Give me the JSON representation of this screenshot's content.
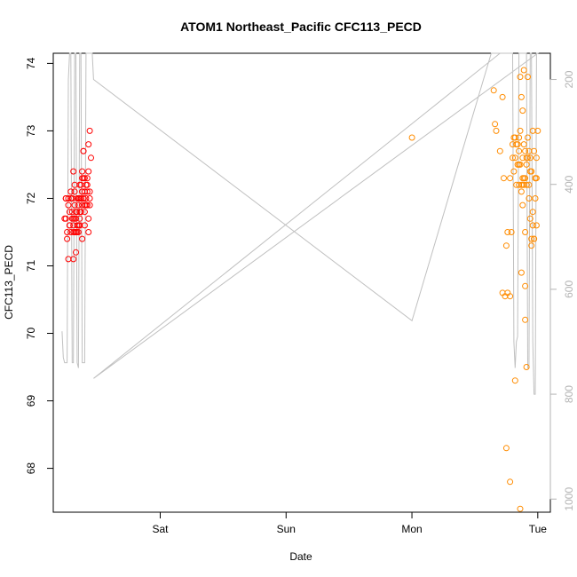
{
  "chart_data": {
    "type": "scatter",
    "title": "ATOM1 Northeast_Pacific CFC113_PECD",
    "xlabel": "Date",
    "ylabel": "CFC113_PECD",
    "x_ticks": [
      "Sat",
      "Sun",
      "Mon",
      "Tue"
    ],
    "x_tick_days": [
      1,
      2,
      3,
      4
    ],
    "xlim": [
      0.15,
      4.1
    ],
    "ylim": [
      67.35,
      74.15
    ],
    "y_ticks": [
      68,
      69,
      70,
      71,
      72,
      73,
      74
    ],
    "right_axis_ticks": [
      200,
      400,
      600,
      800,
      1000
    ],
    "right_axis_lim": [
      1025,
      150
    ],
    "right_axis_reversed": true,
    "grid": false,
    "colors": {
      "series1": "#ff0000",
      "series2": "#ff8c00",
      "depth_line": "#c0c0c0",
      "right_axis": "#b3b3b3"
    },
    "series": [
      {
        "x": [
          0.24,
          0.25,
          0.26,
          0.27,
          0.28,
          0.29,
          0.3,
          0.31,
          0.32,
          0.33,
          0.34,
          0.35,
          0.36,
          0.37,
          0.38,
          0.39,
          0.4,
          0.25,
          0.27,
          0.29,
          0.31,
          0.33,
          0.35,
          0.37,
          0.39,
          0.26,
          0.28,
          0.3,
          0.32,
          0.34,
          0.36,
          0.38,
          0.31,
          0.33,
          0.35,
          0.36,
          0.37,
          0.38,
          0.39,
          0.4,
          0.41,
          0.42,
          0.43,
          0.44,
          0.35,
          0.36,
          0.37,
          0.38,
          0.39,
          0.4,
          0.41,
          0.42,
          0.43,
          0.44,
          0.3,
          0.32,
          0.34,
          0.36,
          0.38,
          0.4,
          0.42,
          0.44,
          0.29,
          0.31,
          0.33,
          0.35,
          0.37,
          0.39,
          0.41,
          0.43,
          0.28,
          0.3,
          0.32,
          0.34,
          0.36,
          0.38,
          0.4,
          0.42,
          0.31,
          0.32,
          0.27,
          0.25,
          0.43,
          0.44,
          0.45
        ],
        "y": [
          71.7,
          72.0,
          71.4,
          71.1,
          71.6,
          72.0,
          71.8,
          71.5,
          71.7,
          71.5,
          71.6,
          72.0,
          71.7,
          71.8,
          71.9,
          72.0,
          71.6,
          71.7,
          71.9,
          72.1,
          72.4,
          71.7,
          71.9,
          72.0,
          72.3,
          71.5,
          71.8,
          72.0,
          72.1,
          71.5,
          71.6,
          71.4,
          71.1,
          71.2,
          71.5,
          71.6,
          72.2,
          72.4,
          72.7,
          72.3,
          71.9,
          72.1,
          72.4,
          72.0,
          71.6,
          71.8,
          72.0,
          72.3,
          72.7,
          72.1,
          72.0,
          72.2,
          71.7,
          71.9,
          72.0,
          72.2,
          71.8,
          72.0,
          72.1,
          71.9,
          72.3,
          72.1,
          71.5,
          71.6,
          71.8,
          72.0,
          71.8,
          72.0,
          72.2,
          71.5,
          71.6,
          71.7,
          71.9,
          72.0,
          72.2,
          72.1,
          71.8,
          71.9,
          71.7,
          71.5,
          72.0,
          72.0,
          72.8,
          73.0,
          72.6
        ],
        "name": ""
      },
      {
        "x": [
          3.0,
          3.65,
          3.66,
          3.67,
          3.7,
          3.72,
          3.73,
          3.75,
          3.76,
          3.78,
          3.79,
          3.8,
          3.81,
          3.82,
          3.83,
          3.84,
          3.85,
          3.86,
          3.87,
          3.88,
          3.89,
          3.9,
          3.91,
          3.92,
          3.93,
          3.94,
          3.95,
          3.96,
          3.97,
          3.98,
          3.99,
          4.0,
          3.87,
          3.88,
          3.89,
          3.9,
          3.91,
          3.92,
          3.93,
          3.94,
          3.95,
          3.96,
          3.97,
          3.98,
          3.99,
          3.8,
          3.81,
          3.82,
          3.83,
          3.84,
          3.85,
          3.86,
          3.87,
          3.88,
          3.89,
          3.9,
          3.91,
          3.92,
          3.93,
          3.94,
          3.95,
          3.96,
          3.97,
          3.98,
          3.99,
          3.85,
          3.86,
          3.87,
          3.88,
          3.89,
          3.9,
          3.91,
          3.75,
          3.78,
          3.82,
          3.86,
          3.9,
          3.72,
          3.74,
          3.76,
          3.78,
          3.85,
          3.88
        ],
        "y": [
          72.9,
          73.6,
          73.1,
          73.0,
          72.7,
          73.5,
          72.3,
          71.3,
          70.6,
          70.55,
          71.5,
          72.8,
          72.9,
          72.6,
          72.2,
          72.8,
          72.9,
          73.8,
          73.5,
          73.3,
          73.9,
          72.7,
          72.5,
          73.8,
          72.7,
          72.6,
          72.4,
          73.0,
          72.7,
          72.0,
          71.6,
          73.0,
          72.2,
          72.6,
          72.3,
          71.5,
          72.2,
          72.6,
          72.0,
          71.7,
          71.4,
          71.8,
          71.4,
          72.3,
          72.3,
          72.6,
          72.4,
          72.9,
          72.8,
          72.5,
          72.2,
          73.0,
          72.1,
          72.2,
          72.8,
          72.3,
          72.6,
          72.9,
          72.2,
          72.4,
          71.3,
          71.6,
          71.4,
          72.3,
          72.6,
          72.5,
          72.5,
          70.9,
          71.9,
          72.2,
          70.2,
          69.5,
          68.3,
          67.8,
          69.3,
          67.4,
          70.7,
          70.6,
          70.55,
          71.5,
          72.3,
          72.7,
          72.3
        ],
        "name": ""
      }
    ],
    "depth_line_right_axis": {
      "x": [
        0.22,
        0.23,
        0.24,
        0.25,
        0.26,
        0.27,
        0.28,
        0.29,
        0.3,
        0.31,
        0.32,
        0.33,
        0.34,
        0.35,
        0.36,
        0.37,
        0.38,
        0.39,
        0.4,
        0.41,
        0.42,
        0.43,
        0.44,
        0.45,
        0.46,
        0.47,
        3.0,
        3.63,
        3.64,
        3.65,
        3.66,
        3.67,
        3.68,
        3.7,
        3.72,
        3.74,
        3.76,
        3.78,
        3.8,
        3.81,
        3.82,
        3.83,
        3.84,
        3.85,
        3.86,
        3.87,
        3.88,
        3.89,
        3.9,
        3.91,
        3.92,
        3.93,
        3.94,
        3.95,
        3.96,
        3.97,
        3.98,
        3.99,
        4.0,
        0.47,
        3.7,
        3.73
      ],
      "y": [
        680,
        730,
        740,
        740,
        740,
        200,
        150,
        150,
        740,
        740,
        150,
        150,
        740,
        750,
        150,
        150,
        740,
        740,
        740,
        150,
        150,
        150,
        150,
        150,
        150,
        200,
        660,
        150,
        150,
        150,
        150,
        150,
        150,
        150,
        150,
        150,
        150,
        150,
        150,
        700,
        750,
        700,
        690,
        150,
        150,
        150,
        150,
        150,
        150,
        150,
        750,
        750,
        150,
        150,
        700,
        800,
        800,
        150,
        150,
        770,
        150,
        150
      ],
      "name": ""
    }
  }
}
